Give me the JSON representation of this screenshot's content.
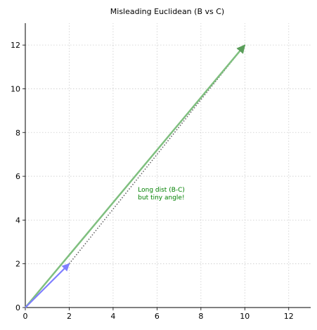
{
  "chart_data": {
    "type": "vector-plot",
    "title": "Misleading Euclidean (B vs C)",
    "xlabel": "",
    "ylabel": "",
    "xlim": [
      0,
      13
    ],
    "ylim": [
      0,
      13
    ],
    "grid": true,
    "x_ticks": [
      0,
      2,
      4,
      6,
      8,
      10,
      12
    ],
    "y_ticks": [
      0,
      2,
      4,
      6,
      8,
      10,
      12
    ],
    "x_tick_labels": [
      "0",
      "2",
      "4",
      "6",
      "8",
      "10",
      "12"
    ],
    "y_tick_labels": [
      "0",
      "2",
      "4",
      "6",
      "8",
      "10",
      "12"
    ],
    "vectors": [
      {
        "from": [
          0,
          0
        ],
        "to": [
          10,
          12
        ],
        "color": "#7fbf7f"
      },
      {
        "from": [
          0,
          0
        ],
        "to": [
          2,
          2
        ],
        "color": "#7f7fff"
      }
    ],
    "distance_line": {
      "from": [
        2,
        2
      ],
      "to": [
        10,
        12
      ],
      "color": "#666666",
      "style": "dotted"
    },
    "annotation": {
      "lines": [
        "Long dist (B-C)",
        "but tiny angle!"
      ],
      "at": [
        5.1,
        5.3
      ],
      "color": "#008000"
    }
  }
}
